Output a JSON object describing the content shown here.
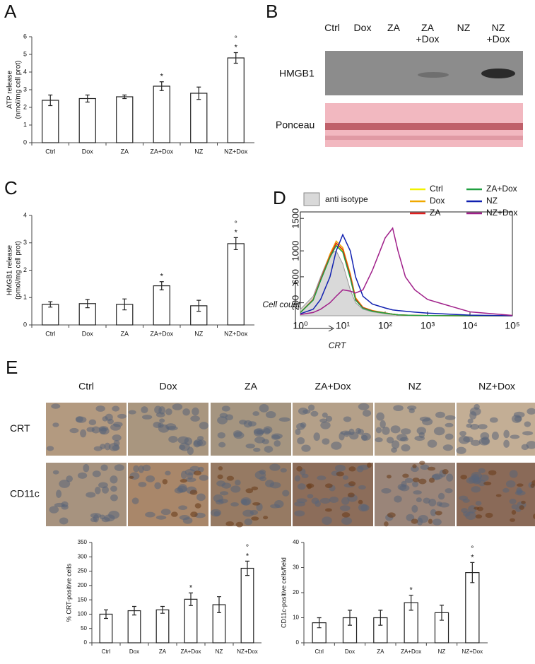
{
  "panel_labels": [
    "A",
    "B",
    "C",
    "D",
    "E"
  ],
  "blot": {
    "lanes": [
      "Ctrl",
      "Dox",
      "ZA",
      "ZA\n+Dox",
      "NZ",
      "NZ\n+Dox"
    ],
    "rows": [
      "HMGB1",
      "Ponceau"
    ]
  },
  "micrographs": {
    "columns": [
      "Ctrl",
      "Dox",
      "ZA",
      "ZA+Dox",
      "NZ",
      "NZ+Dox"
    ],
    "rows": [
      "CRT",
      "CD11c"
    ]
  },
  "chart_data": [
    {
      "type": "bar",
      "ylabel": [
        "ATP release",
        "(nmol/mg cell prot)"
      ],
      "categories": [
        "Ctrl",
        "Dox",
        "ZA",
        "ZA+Dox",
        "NZ",
        "NZ+Dox"
      ],
      "values": [
        2.4,
        2.5,
        2.6,
        3.2,
        2.8,
        4.8
      ],
      "errors": [
        0.3,
        0.2,
        0.1,
        0.25,
        0.35,
        0.3
      ],
      "stars": [
        null,
        null,
        null,
        "*",
        null,
        "*"
      ],
      "degrees": [
        null,
        null,
        null,
        null,
        null,
        "°"
      ],
      "ylim": [
        0,
        6
      ],
      "yticks": [
        0,
        1,
        2,
        3,
        4,
        5,
        6
      ],
      "color": "#ffffff"
    },
    {
      "type": "bar",
      "ylabel": [
        "HMGB1 release",
        "(pmol/mg cell prot)"
      ],
      "categories": [
        "Ctrl",
        "Dox",
        "ZA",
        "ZA+Dox",
        "NZ",
        "NZ+Dox"
      ],
      "values": [
        0.75,
        0.78,
        0.75,
        1.43,
        0.7,
        2.97
      ],
      "errors": [
        0.1,
        0.15,
        0.2,
        0.15,
        0.2,
        0.22
      ],
      "stars": [
        null,
        null,
        null,
        "*",
        null,
        "*"
      ],
      "degrees": [
        null,
        null,
        null,
        null,
        null,
        "°"
      ],
      "ylim": [
        0,
        4
      ],
      "yticks": [
        0,
        1,
        2,
        3,
        4
      ],
      "color": "#ffffff"
    },
    {
      "type": "line",
      "log_x": true,
      "xlabel": "CRT",
      "ylabel": "Cell count",
      "x": [
        1,
        2,
        3,
        5,
        7,
        10,
        15,
        20,
        30,
        50,
        100,
        150,
        200,
        300,
        500,
        1000,
        10000,
        100000
      ],
      "xlim": [
        1,
        100000
      ],
      "xticks": [
        {
          "value": 1,
          "label": "10⁰"
        },
        {
          "value": 10,
          "label": "10¹"
        },
        {
          "value": 100,
          "label": "10²"
        },
        {
          "value": 1000,
          "label": "10³"
        },
        {
          "value": 10000,
          "label": "10⁴"
        },
        {
          "value": 100000,
          "label": "10⁵"
        }
      ],
      "ylim": [
        0,
        1600
      ],
      "yticks": [
        200,
        600,
        1000,
        1500
      ],
      "series": [
        {
          "name": "anti isotype",
          "color": "#999999",
          "fill": "#d9d9d9",
          "values": [
            100,
            300,
            600,
            950,
            1000,
            800,
            400,
            200,
            100,
            60,
            30,
            20,
            15,
            10,
            5,
            3,
            0,
            0
          ]
        },
        {
          "name": "Ctrl",
          "color": "#f2f200",
          "values": [
            50,
            250,
            550,
            900,
            1100,
            1000,
            600,
            250,
            120,
            70,
            40,
            25,
            15,
            10,
            5,
            3,
            0,
            0
          ]
        },
        {
          "name": "Dox",
          "color": "#f0a800",
          "values": [
            50,
            250,
            550,
            950,
            1150,
            1050,
            650,
            280,
            130,
            80,
            45,
            25,
            15,
            10,
            5,
            3,
            0,
            0
          ]
        },
        {
          "name": "ZA",
          "color": "#e02020",
          "values": [
            50,
            250,
            560,
            920,
            1120,
            1020,
            620,
            260,
            125,
            75,
            42,
            25,
            15,
            10,
            5,
            3,
            0,
            0
          ]
        },
        {
          "name": "ZA+Dox",
          "color": "#20a040",
          "values": [
            50,
            240,
            540,
            900,
            1080,
            980,
            580,
            240,
            115,
            70,
            40,
            25,
            15,
            10,
            5,
            3,
            0,
            0
          ]
        },
        {
          "name": "NZ",
          "color": "#1020b0",
          "values": [
            30,
            100,
            250,
            600,
            1000,
            1250,
            1000,
            600,
            300,
            180,
            120,
            90,
            80,
            70,
            55,
            40,
            10,
            0
          ]
        },
        {
          "name": "NZ+Dox",
          "color": "#a0208a",
          "values": [
            20,
            50,
            100,
            200,
            300,
            400,
            380,
            350,
            400,
            700,
            1200,
            1350,
            1000,
            600,
            400,
            250,
            60,
            5
          ]
        }
      ]
    },
    {
      "type": "bar",
      "ylabel": [
        "% CRT-positive cells"
      ],
      "categories": [
        "Ctrl",
        "Dox",
        "ZA",
        "ZA+Dox",
        "NZ",
        "NZ+Dox"
      ],
      "values": [
        100,
        112,
        115,
        152,
        133,
        260
      ],
      "errors": [
        15,
        15,
        12,
        22,
        28,
        25
      ],
      "stars": [
        null,
        null,
        null,
        "*",
        null,
        "*"
      ],
      "degrees": [
        null,
        null,
        null,
        null,
        null,
        "°"
      ],
      "ylim": [
        0,
        350
      ],
      "yticks": [
        0,
        50,
        100,
        150,
        200,
        250,
        300,
        350
      ],
      "color": "#ffffff"
    },
    {
      "type": "bar",
      "ylabel": [
        "CD11c-positive cells/field"
      ],
      "categories": [
        "Ctrl",
        "Dox",
        "ZA",
        "ZA+Dox",
        "NZ",
        "NZ+Dox"
      ],
      "values": [
        8,
        10,
        10,
        16,
        12,
        28
      ],
      "errors": [
        2,
        3,
        3,
        3,
        3,
        4
      ],
      "stars": [
        null,
        null,
        null,
        "*",
        null,
        "*"
      ],
      "degrees": [
        null,
        null,
        null,
        null,
        null,
        "°"
      ],
      "ylim": [
        0,
        40
      ],
      "yticks": [
        0,
        10,
        20,
        30,
        40
      ],
      "color": "#ffffff"
    }
  ]
}
